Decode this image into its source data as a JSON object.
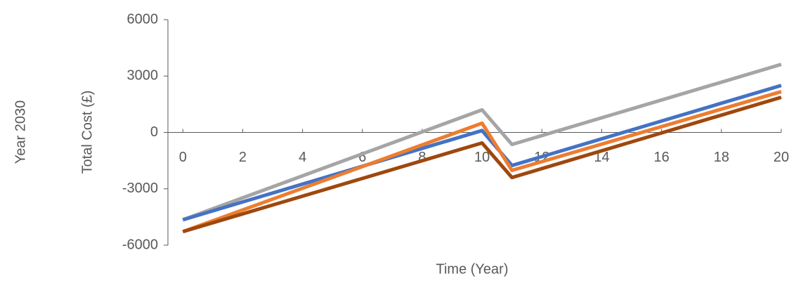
{
  "chart_data": {
    "type": "line",
    "title": "Year 2030",
    "y_label": "Total Cost (£)",
    "x_label": "Time (Year)",
    "x": [
      0,
      10,
      11,
      20
    ],
    "series": [
      {
        "color": "#a5a5a5",
        "values": [
          -4650,
          1200,
          -640,
          3620
        ]
      },
      {
        "color": "#4472c4",
        "values": [
          -4650,
          100,
          -1760,
          2500
        ]
      },
      {
        "color": "#ed7d31",
        "values": [
          -5280,
          490,
          -2020,
          2170
        ]
      },
      {
        "color": "#9e480e",
        "values": [
          -5280,
          -560,
          -2400,
          1870
        ]
      }
    ],
    "xlim": [
      -0.5,
      20
    ],
    "xticks": [
      0,
      2,
      4,
      6,
      8,
      10,
      12,
      14,
      16,
      18,
      20
    ],
    "ylim": [
      -6000,
      6000
    ],
    "yticks": [
      -6000,
      -3000,
      0,
      3000,
      6000
    ]
  }
}
